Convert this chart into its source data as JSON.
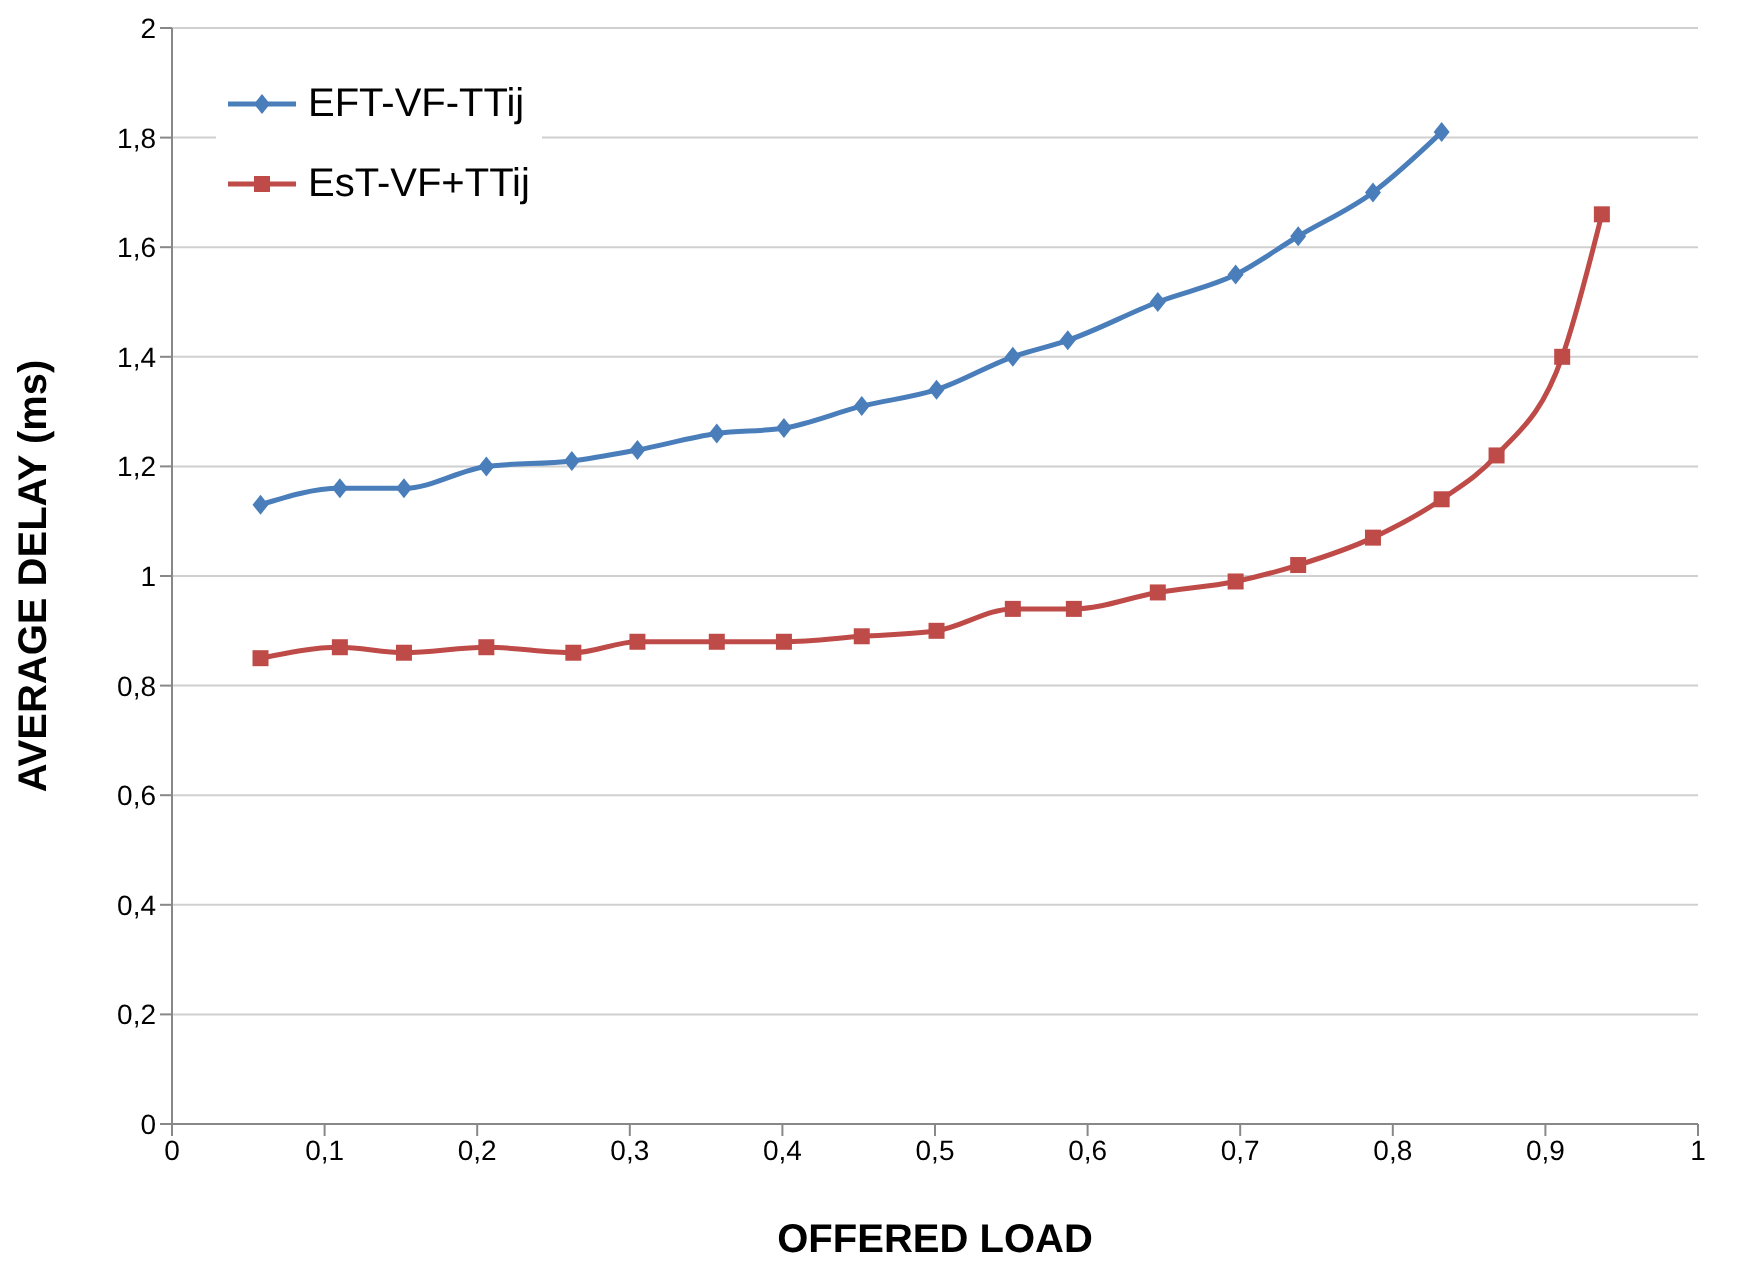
{
  "chart_data": {
    "type": "line",
    "xlabel": "OFFERED LOAD",
    "ylabel": "AVERAGE DELAY (ms)",
    "xlim": [
      0,
      1
    ],
    "ylim": [
      0,
      2
    ],
    "xticks": [
      0,
      {
        "value": 0.1,
        "label": "0,1"
      },
      {
        "value": 0.2,
        "label": "0,2"
      },
      {
        "value": 0.3,
        "label": "0,3"
      },
      {
        "value": 0.4,
        "label": "0,4"
      },
      {
        "value": 0.5,
        "label": "0,5"
      },
      {
        "value": 0.6,
        "label": "0,6"
      },
      {
        "value": 0.7,
        "label": "0,7"
      },
      {
        "value": 0.8,
        "label": "0,8"
      },
      {
        "value": 0.9,
        "label": "0,9"
      },
      1
    ],
    "yticks": [
      0,
      {
        "value": 0.2,
        "label": "0,2"
      },
      {
        "value": 0.4,
        "label": "0,4"
      },
      {
        "value": 0.6,
        "label": "0,6"
      },
      {
        "value": 0.8,
        "label": "0,8"
      },
      1,
      {
        "value": 1.2,
        "label": "1,2"
      },
      {
        "value": 1.4,
        "label": "1,4"
      },
      {
        "value": 1.6,
        "label": "1,6"
      },
      {
        "value": 1.8,
        "label": "1,8"
      },
      2
    ],
    "grid": "y",
    "legend": "top left",
    "line_style": "solid",
    "series": [
      {
        "name": "EFT-VF-TTij",
        "color": "#4a7ebb",
        "marker": "diamond",
        "x": [
          0.058,
          0.11,
          0.152,
          0.206,
          0.262,
          0.305,
          0.357,
          0.401,
          0.452,
          0.501,
          0.551,
          0.587,
          0.646,
          0.697,
          0.738,
          0.787,
          0.832
        ],
        "values": [
          1.13,
          1.16,
          1.16,
          1.2,
          1.21,
          1.23,
          1.26,
          1.27,
          1.31,
          1.34,
          1.4,
          1.43,
          1.5,
          1.55,
          1.62,
          1.7,
          1.81
        ]
      },
      {
        "name": "EsT-VF+TTij",
        "color": "#be4b48",
        "marker": "square",
        "x": [
          0.058,
          0.11,
          0.152,
          0.206,
          0.263,
          0.305,
          0.357,
          0.401,
          0.452,
          0.501,
          0.551,
          0.591,
          0.646,
          0.697,
          0.738,
          0.787,
          0.832,
          0.868,
          0.911,
          0.937
        ],
        "values": [
          0.85,
          0.87,
          0.86,
          0.87,
          0.86,
          0.88,
          0.88,
          0.88,
          0.89,
          0.9,
          0.94,
          0.94,
          0.97,
          0.99,
          1.02,
          1.07,
          1.14,
          1.22,
          1.4,
          1.66
        ]
      }
    ]
  }
}
